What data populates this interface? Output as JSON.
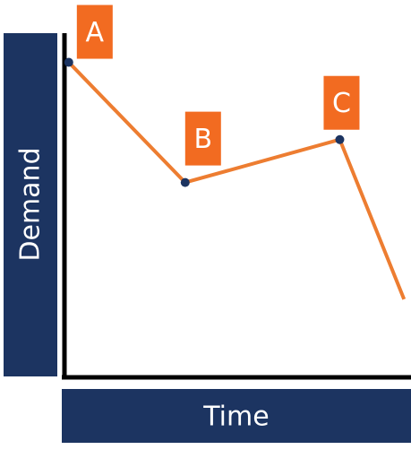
{
  "chart_data": {
    "type": "line",
    "x_label": "Time",
    "y_label": "Demand",
    "x": [
      1.5,
      35,
      79.5,
      98
    ],
    "values": [
      91.5,
      56.5,
      69,
      22.5
    ],
    "point_labels": [
      "A",
      "B",
      "C",
      null
    ],
    "xlim": [
      0,
      100
    ],
    "ylim": [
      0,
      100
    ],
    "color": "#ed7d31",
    "marker_color": "#1c3461",
    "label_color": "#f26b21",
    "axis_box_color": "#1c3461"
  }
}
